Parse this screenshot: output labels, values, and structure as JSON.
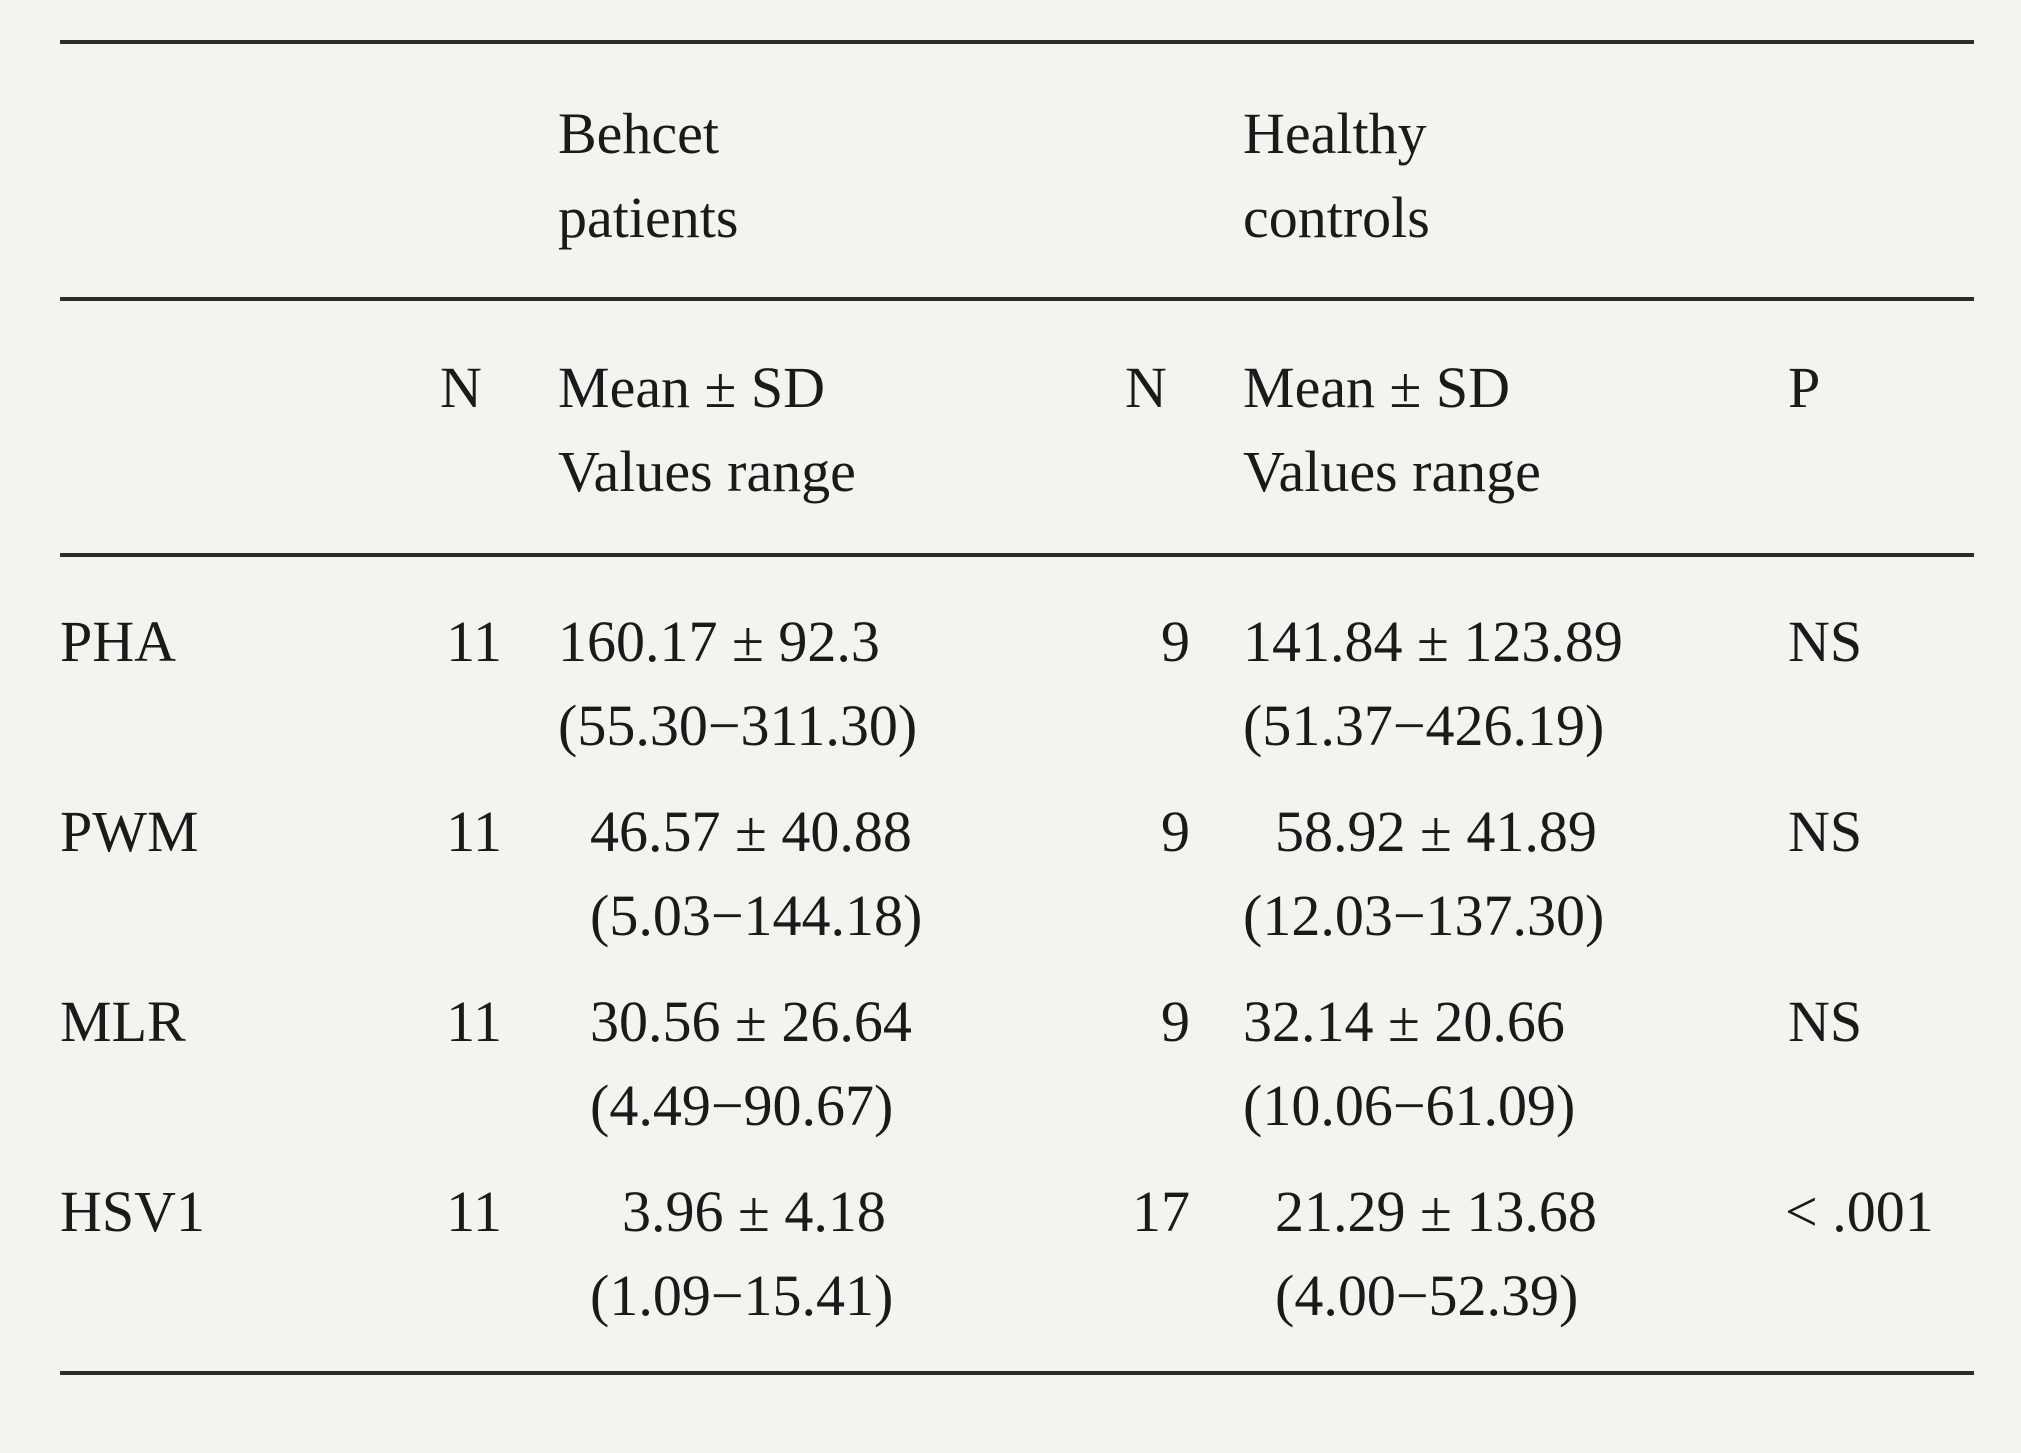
{
  "table": {
    "group_headers": {
      "behcet": [
        "Behcet",
        "patients"
      ],
      "healthy": [
        "Healthy",
        "controls"
      ]
    },
    "column_headers": {
      "n_behcet": "N",
      "behcet_stats": [
        "Mean ± SD",
        "Values range"
      ],
      "n_healthy": "N",
      "healthy_stats": [
        "Mean ± SD",
        "Values range"
      ],
      "p": "P"
    },
    "rows": [
      {
        "label": "PHA",
        "n_behcet": "11",
        "behcet_mean": "160.17 ± 92.3",
        "behcet_range": "(55.30−311.30)",
        "n_healthy": "9",
        "healthy_mean": "141.84 ± 123.89",
        "healthy_range": "(51.37−426.19)",
        "p": "NS"
      },
      {
        "label": "PWM",
        "n_behcet": "11",
        "behcet_mean": "46.57 ± 40.88",
        "behcet_range": "(5.03−144.18)",
        "n_healthy": "9",
        "healthy_mean": "58.92 ± 41.89",
        "healthy_range": "(12.03−137.30)",
        "p": "NS"
      },
      {
        "label": "MLR",
        "n_behcet": "11",
        "behcet_mean": "30.56 ± 26.64",
        "behcet_range": "(4.49−90.67)",
        "n_healthy": "9",
        "healthy_mean": "32.14 ± 20.66",
        "healthy_range": "(10.06−61.09)",
        "p": "NS"
      },
      {
        "label": "HSV1",
        "n_behcet": "11",
        "behcet_mean": "3.96 ± 4.18",
        "behcet_range": "(1.09−15.41)",
        "n_healthy": "17",
        "healthy_mean": "21.29 ± 13.68",
        "healthy_range": "(4.00−52.39)",
        "p": "< .001"
      }
    ]
  }
}
